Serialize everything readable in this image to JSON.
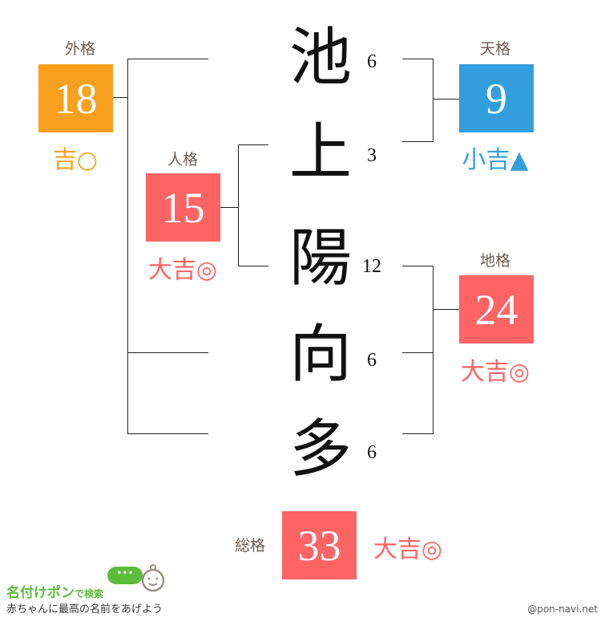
{
  "colors": {
    "kichi": "#f9a01e",
    "daikichi": "#fe6464",
    "shokichi": "#339edc",
    "label": "#6b5d52",
    "logo_green": "#5cbd3b"
  },
  "name_chars": [
    {
      "char": "池",
      "strokes": "6"
    },
    {
      "char": "上",
      "strokes": "3"
    },
    {
      "char": "陽",
      "strokes": "12"
    },
    {
      "char": "向",
      "strokes": "6"
    },
    {
      "char": "多",
      "strokes": "6"
    }
  ],
  "gaikaku": {
    "label": "外格",
    "value": "18",
    "fortune": "吉○"
  },
  "jinkaku": {
    "label": "人格",
    "value": "15",
    "fortune": "大吉◎"
  },
  "tenkaku": {
    "label": "天格",
    "value": "9",
    "fortune": "小吉▲"
  },
  "chikaku": {
    "label": "地格",
    "value": "24",
    "fortune": "大吉◎"
  },
  "soukaku": {
    "label": "総格",
    "value": "33",
    "fortune": "大吉◎"
  },
  "footer": {
    "logo_main": "名付けポン",
    "logo_sub": "で検索",
    "tagline": "赤ちゃんに最高の名前をあげよう",
    "site": "@pon-navi.net"
  }
}
